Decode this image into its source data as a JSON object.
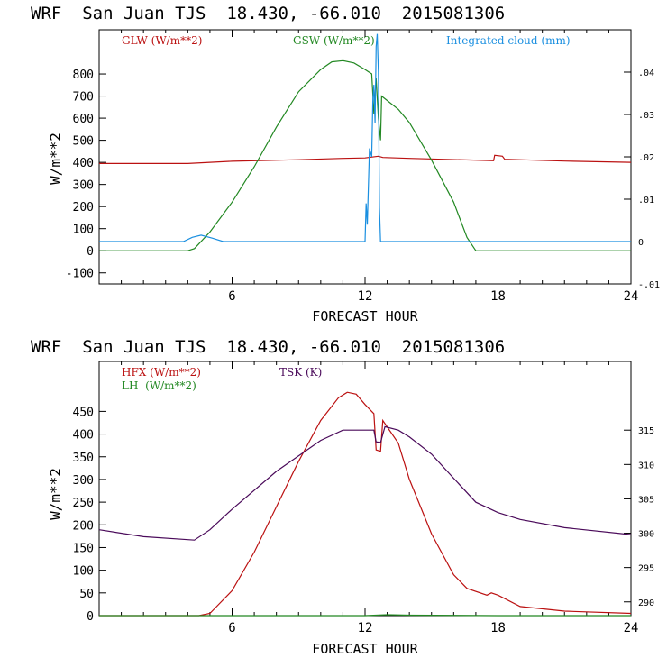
{
  "chart_data": [
    {
      "type": "line",
      "title": "WRF  San Juan TJS  18.430, -66.010  2015081306",
      "xlabel": "FORECAST HOUR",
      "ylabel": "W/m**2",
      "xlim": [
        0,
        24
      ],
      "ylim": [
        -150,
        1000
      ],
      "y2lim": [
        -0.01,
        0.05
      ],
      "x_ticks": [
        "6",
        "12",
        "18",
        "24"
      ],
      "y_ticks": [
        "-100",
        "0",
        "100",
        "200",
        "300",
        "400",
        "500",
        "600",
        "700",
        "800"
      ],
      "y2_ticks": [
        "-.01",
        "0",
        ".01",
        ".02",
        ".03",
        ".04"
      ],
      "legend": [
        {
          "label": "GLW (W/m**2)",
          "color": "#bb1111"
        },
        {
          "label": "GSW (W/m**2)",
          "color": "#228822"
        },
        {
          "label": "Integrated cloud (mm)",
          "color": "#1a8fe0"
        }
      ],
      "series": [
        {
          "name": "GLW (W/m**2)",
          "color": "#bb1111",
          "axis": "left",
          "points": [
            [
              0,
              395
            ],
            [
              4,
              395
            ],
            [
              6,
              405
            ],
            [
              9,
              412
            ],
            [
              11,
              418
            ],
            [
              12,
              420
            ],
            [
              12.6,
              428
            ],
            [
              12.8,
              422
            ],
            [
              14,
              418
            ],
            [
              17.8,
              408
            ],
            [
              17.85,
              432
            ],
            [
              18.2,
              428
            ],
            [
              18.3,
              414
            ],
            [
              21,
              406
            ],
            [
              24,
              400
            ]
          ]
        },
        {
          "name": "GSW (W/m**2)",
          "color": "#228822",
          "axis": "left",
          "points": [
            [
              0,
              0
            ],
            [
              4,
              0
            ],
            [
              4.3,
              10
            ],
            [
              5,
              85
            ],
            [
              6,
              220
            ],
            [
              7,
              380
            ],
            [
              8,
              560
            ],
            [
              9,
              720
            ],
            [
              10,
              820
            ],
            [
              10.5,
              855
            ],
            [
              11,
              860
            ],
            [
              11.5,
              850
            ],
            [
              12,
              820
            ],
            [
              12.3,
              800
            ],
            [
              12.4,
              620
            ],
            [
              12.5,
              780
            ],
            [
              12.6,
              600
            ],
            [
              12.7,
              500
            ],
            [
              12.75,
              700
            ],
            [
              13.5,
              640
            ],
            [
              14,
              580
            ],
            [
              15,
              410
            ],
            [
              16,
              220
            ],
            [
              16.6,
              60
            ],
            [
              17,
              0
            ],
            [
              24,
              0
            ]
          ]
        },
        {
          "name": "Integrated cloud (mm)",
          "color": "#1a8fe0",
          "axis": "right",
          "points": [
            [
              0,
              0
            ],
            [
              3.8,
              0
            ],
            [
              4.2,
              0.001
            ],
            [
              4.6,
              0.0015
            ],
            [
              5.1,
              0.0008
            ],
            [
              5.6,
              0
            ],
            [
              12,
              0
            ],
            [
              12.05,
              0.009
            ],
            [
              12.1,
              0.004
            ],
            [
              12.2,
              0.022
            ],
            [
              12.3,
              0.02
            ],
            [
              12.35,
              0.033
            ],
            [
              12.4,
              0.037
            ],
            [
              12.45,
              0.028
            ],
            [
              12.5,
              0.046
            ],
            [
              12.55,
              0.049
            ],
            [
              12.6,
              0.04
            ],
            [
              12.65,
              0.008
            ],
            [
              12.7,
              0
            ],
            [
              24,
              0
            ]
          ]
        }
      ]
    },
    {
      "type": "line",
      "title": "WRF  San Juan TJS  18.430, -66.010  2015081306",
      "xlabel": "FORECAST HOUR",
      "ylabel": "W/m**2",
      "xlim": [
        0,
        24
      ],
      "ylim": [
        0,
        560
      ],
      "y2lim": [
        288,
        325
      ],
      "x_ticks": [
        "6",
        "12",
        "18",
        "24"
      ],
      "y_ticks": [
        "0",
        "50",
        "100",
        "150",
        "200",
        "250",
        "300",
        "350",
        "400",
        "450"
      ],
      "y2_ticks": [
        "290",
        "295",
        "300",
        "305",
        "310",
        "315"
      ],
      "legend": [
        {
          "label": "HFX (W/m**2)",
          "color": "#bb1111"
        },
        {
          "label": "LH  (W/m**2)",
          "color": "#228822"
        },
        {
          "label": "TSK (K)",
          "color": "#4a0a5a"
        }
      ],
      "series": [
        {
          "name": "HFX (W/m**2)",
          "color": "#bb1111",
          "axis": "left",
          "points": [
            [
              0,
              0
            ],
            [
              4.5,
              0
            ],
            [
              5,
              5
            ],
            [
              6,
              55
            ],
            [
              7,
              140
            ],
            [
              8,
              240
            ],
            [
              9,
              340
            ],
            [
              10,
              430
            ],
            [
              10.8,
              480
            ],
            [
              11.2,
              492
            ],
            [
              11.6,
              488
            ],
            [
              12,
              465
            ],
            [
              12.4,
              445
            ],
            [
              12.5,
              365
            ],
            [
              12.7,
              362
            ],
            [
              12.8,
              430
            ],
            [
              13.5,
              380
            ],
            [
              14,
              300
            ],
            [
              15,
              180
            ],
            [
              16,
              90
            ],
            [
              16.6,
              60
            ],
            [
              17.5,
              45
            ],
            [
              17.7,
              50
            ],
            [
              18,
              45
            ],
            [
              19,
              20
            ],
            [
              21,
              10
            ],
            [
              24,
              5
            ]
          ]
        },
        {
          "name": "LH  (W/m**2)",
          "color": "#228822",
          "axis": "left",
          "points": [
            [
              0,
              0
            ],
            [
              12,
              0
            ],
            [
              13,
              2
            ],
            [
              14,
              1
            ],
            [
              18,
              0
            ],
            [
              24,
              0
            ]
          ]
        },
        {
          "name": "TSK (K)",
          "color": "#4a0a5a",
          "axis": "right",
          "points": [
            [
              0,
              300.5
            ],
            [
              2,
              299.5
            ],
            [
              4.3,
              299
            ],
            [
              5,
              300.5
            ],
            [
              6,
              303.5
            ],
            [
              8,
              309
            ],
            [
              10,
              313.5
            ],
            [
              11,
              315
            ],
            [
              12,
              315
            ],
            [
              12.4,
              315
            ],
            [
              12.5,
              313.3
            ],
            [
              12.7,
              313.2
            ],
            [
              12.9,
              315.5
            ],
            [
              13.5,
              315
            ],
            [
              14,
              314
            ],
            [
              15,
              311.5
            ],
            [
              16,
              308
            ],
            [
              17,
              304.5
            ],
            [
              18,
              303
            ],
            [
              19,
              302
            ],
            [
              21,
              300.8
            ],
            [
              24,
              299.8
            ]
          ]
        }
      ]
    }
  ]
}
